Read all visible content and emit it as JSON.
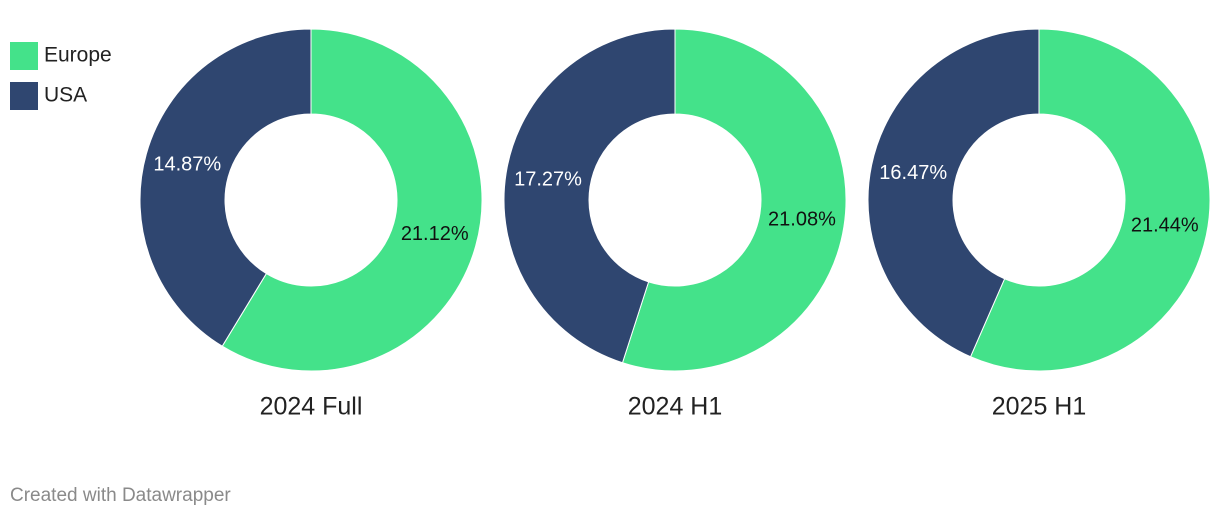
{
  "chart_data": {
    "type": "donut",
    "categories": [
      "2024 Full",
      "2024 H1",
      "2025 H1"
    ],
    "series": [
      {
        "name": "Europe",
        "color": "#44e28a",
        "label_color": "#111111",
        "values": [
          21.12,
          21.08,
          21.44
        ],
        "value_labels": [
          "21.12%",
          "21.08%",
          "21.44%"
        ]
      },
      {
        "name": "USA",
        "color": "#2f4670",
        "label_color": "#ffffff",
        "values": [
          14.87,
          17.27,
          16.47
        ],
        "value_labels": [
          "14.87%",
          "17.27%",
          "16.47%"
        ]
      }
    ],
    "legend": "top-left"
  },
  "footer": "Created with Datawrapper"
}
